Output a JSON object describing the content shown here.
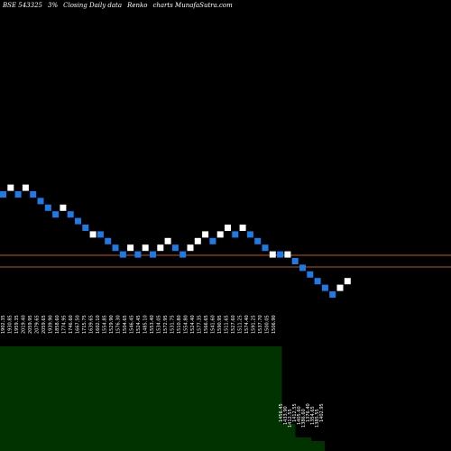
{
  "header": {
    "symbol": "BSE 543325",
    "change": "3%",
    "description": "Closing Daily data",
    "chart_kind": "Renko",
    "site": "charts MunafaSutra.com"
  },
  "colors": {
    "background": "#000000",
    "up_brick": "#ffffff",
    "down_brick": "#1e7ae6",
    "level_line": "#b85a1f",
    "volume_fill": "#003300",
    "tick_text": "#ffffff"
  },
  "chart_data": {
    "type": "renko",
    "bricks": [
      {
        "dir": "down",
        "level": 0
      },
      {
        "dir": "up",
        "level": -1
      },
      {
        "dir": "down",
        "level": 0
      },
      {
        "dir": "up",
        "level": -1
      },
      {
        "dir": "down",
        "level": 0
      },
      {
        "dir": "down",
        "level": 1
      },
      {
        "dir": "down",
        "level": 2
      },
      {
        "dir": "down",
        "level": 3
      },
      {
        "dir": "up",
        "level": 2
      },
      {
        "dir": "down",
        "level": 3
      },
      {
        "dir": "down",
        "level": 4
      },
      {
        "dir": "down",
        "level": 5
      },
      {
        "dir": "up",
        "level": 6
      },
      {
        "dir": "down",
        "level": 6
      },
      {
        "dir": "down",
        "level": 7
      },
      {
        "dir": "down",
        "level": 8
      },
      {
        "dir": "down",
        "level": 9
      },
      {
        "dir": "up",
        "level": 8
      },
      {
        "dir": "down",
        "level": 9
      },
      {
        "dir": "up",
        "level": 8
      },
      {
        "dir": "down",
        "level": 9
      },
      {
        "dir": "up",
        "level": 8
      },
      {
        "dir": "up",
        "level": 7
      },
      {
        "dir": "down",
        "level": 8
      },
      {
        "dir": "down",
        "level": 9
      },
      {
        "dir": "up",
        "level": 8
      },
      {
        "dir": "up",
        "level": 7
      },
      {
        "dir": "up",
        "level": 6
      },
      {
        "dir": "down",
        "level": 7
      },
      {
        "dir": "up",
        "level": 6
      },
      {
        "dir": "up",
        "level": 5
      },
      {
        "dir": "down",
        "level": 6
      },
      {
        "dir": "up",
        "level": 5
      },
      {
        "dir": "down",
        "level": 6
      },
      {
        "dir": "down",
        "level": 7
      },
      {
        "dir": "down",
        "level": 8
      },
      {
        "dir": "up",
        "level": 9
      },
      {
        "dir": "down",
        "level": 9
      },
      {
        "dir": "up",
        "level": 9
      },
      {
        "dir": "down",
        "level": 10
      },
      {
        "dir": "down",
        "level": 11
      },
      {
        "dir": "down",
        "level": 12
      },
      {
        "dir": "down",
        "level": 13
      },
      {
        "dir": "down",
        "level": 14
      },
      {
        "dir": "down",
        "level": 15
      },
      {
        "dir": "up",
        "level": 14
      },
      {
        "dir": "up",
        "level": 13
      }
    ],
    "level_lines": [
      0.566,
      0.592
    ],
    "tick_labels_upper": [
      "1902.35",
      "1930.85",
      "1959.35",
      "2019.40",
      "2059.95",
      "2079.65",
      "2059.65",
      "1939.90",
      "1858.60",
      "1774.95",
      "1746.60",
      "1667.50",
      "1715.75",
      "1639.65",
      "1602.10",
      "1554.85",
      "1529.90",
      "1576.30",
      "1504.65",
      "1546.45",
      "1524.45",
      "1485.10",
      "1553.40",
      "1534.05",
      "1572.95",
      "1531.75",
      "1510.80",
      "1554.80",
      "1524.40",
      "1577.35",
      "1566.65",
      "1541.60",
      "1590.95",
      "1511.65",
      "1527.60",
      "1511.25",
      "1574.40",
      "1591.25",
      "1537.70",
      "1500.05",
      "1506.90"
    ],
    "tick_labels_lower": [
      "1456.45",
      "1433.90",
      "1412.55",
      "1412.55",
      "1405.60",
      "1386.60",
      "1376.40",
      "1354.65",
      "1385.55",
      "1402.95"
    ],
    "volume_bars": [
      {
        "start": 0.0,
        "end": 0.625,
        "height": 0.232
      },
      {
        "start": 0.625,
        "end": 0.655,
        "height": 0.06
      },
      {
        "start": 0.655,
        "end": 0.69,
        "height": 0.03
      },
      {
        "start": 0.69,
        "end": 0.72,
        "height": 0.022
      }
    ]
  }
}
